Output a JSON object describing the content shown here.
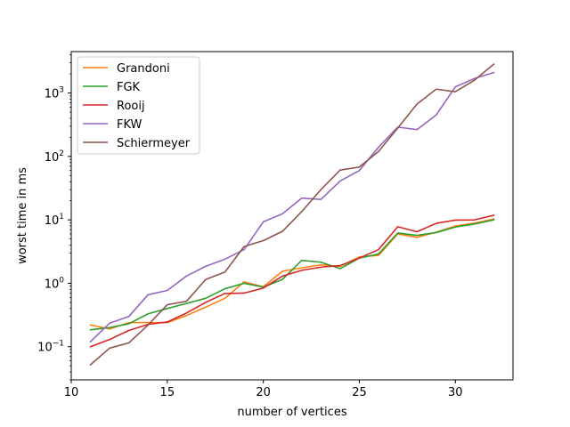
{
  "chart_data": {
    "type": "line",
    "xlabel": "number of vertices",
    "ylabel": "worst time in ms",
    "xlim": [
      10.0,
      33.0
    ],
    "ylim": [
      0.03,
      4500
    ],
    "yscale": "log",
    "grid": false,
    "legend_position": "top-left",
    "x_ticks": [
      {
        "value": 10,
        "label": "10"
      },
      {
        "value": 15,
        "label": "15"
      },
      {
        "value": 20,
        "label": "20"
      },
      {
        "value": 25,
        "label": "25"
      },
      {
        "value": 30,
        "label": "30"
      }
    ],
    "y_ticks": [
      {
        "value": 0.1,
        "base": "10",
        "exp": "−1"
      },
      {
        "value": 1,
        "base": "10",
        "exp": "0"
      },
      {
        "value": 10,
        "base": "10",
        "exp": "1"
      },
      {
        "value": 100,
        "base": "10",
        "exp": "2"
      },
      {
        "value": 1000,
        "base": "10",
        "exp": "3"
      }
    ],
    "x": [
      11,
      12,
      13,
      14,
      15,
      16,
      17,
      18,
      19,
      20,
      21,
      22,
      23,
      24,
      25,
      26,
      27,
      28,
      29,
      30,
      31,
      32
    ],
    "series": [
      {
        "name": "Grandoni",
        "color": "#ff7f0e",
        "values": [
          0.22,
          0.19,
          0.24,
          0.24,
          0.24,
          0.31,
          0.42,
          0.58,
          1.05,
          0.88,
          1.55,
          1.75,
          1.95,
          1.85,
          2.6,
          2.75,
          6.0,
          5.3,
          6.4,
          8.0,
          8.9,
          10.3
        ]
      },
      {
        "name": "FGK",
        "color": "#2ca02c",
        "values": [
          0.185,
          0.2,
          0.23,
          0.33,
          0.4,
          0.48,
          0.58,
          0.82,
          1.0,
          0.87,
          1.15,
          2.3,
          2.15,
          1.7,
          2.5,
          2.9,
          6.2,
          5.7,
          6.3,
          7.7,
          8.6,
          10.0
        ]
      },
      {
        "name": "Rooij",
        "color": "#d62728",
        "values": [
          0.1,
          0.13,
          0.18,
          0.225,
          0.245,
          0.34,
          0.5,
          0.69,
          0.7,
          0.84,
          1.3,
          1.6,
          1.8,
          1.9,
          2.5,
          3.4,
          7.8,
          6.5,
          8.8,
          9.9,
          10.0,
          11.8
        ]
      },
      {
        "name": "FKW",
        "color": "#9467bd",
        "values": [
          0.12,
          0.235,
          0.3,
          0.66,
          0.77,
          1.3,
          1.85,
          2.4,
          3.4,
          9.3,
          12.5,
          22.0,
          21.0,
          41.0,
          60.0,
          140.0,
          290.0,
          265.0,
          450.0,
          1250.0,
          1700.0,
          2100.0
        ]
      },
      {
        "name": "Schiermeyer",
        "color": "#8c564b",
        "values": [
          0.052,
          0.095,
          0.115,
          0.22,
          0.46,
          0.52,
          1.15,
          1.5,
          3.8,
          4.7,
          6.6,
          13.5,
          30.0,
          61.0,
          68.0,
          120.0,
          280.0,
          670.0,
          1150.0,
          1050.0,
          1600.0,
          2850.0
        ]
      }
    ]
  }
}
